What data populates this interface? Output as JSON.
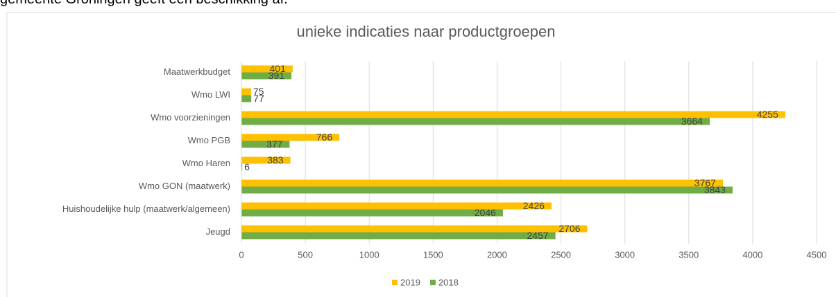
{
  "page_text": "gemeente Groningen geeft een beschikking af.",
  "chart_data": {
    "type": "bar",
    "orientation": "horizontal",
    "title": "unieke indicaties naar productgroepen",
    "categories": [
      "Maatwerkbudget",
      "Wmo LWI",
      "Wmo voorzieningen",
      "Wmo PGB",
      "Wmo Haren",
      "Wmo GON (maatwerk)",
      "Huishoudelijke hulp (maatwerk/algemeen)",
      "Jeugd"
    ],
    "series": [
      {
        "name": "2019",
        "color": "#ffc000",
        "values": [
          401,
          75,
          4255,
          766,
          383,
          3767,
          2426,
          2706
        ]
      },
      {
        "name": "2018",
        "color": "#70ad47",
        "values": [
          391,
          77,
          3664,
          377,
          6,
          3843,
          2046,
          2457
        ]
      }
    ],
    "xlim": [
      0,
      4500
    ],
    "xticks": [
      0,
      500,
      1000,
      1500,
      2000,
      2500,
      3000,
      3500,
      4000,
      4500
    ],
    "grid": true,
    "legend": "bottom"
  }
}
